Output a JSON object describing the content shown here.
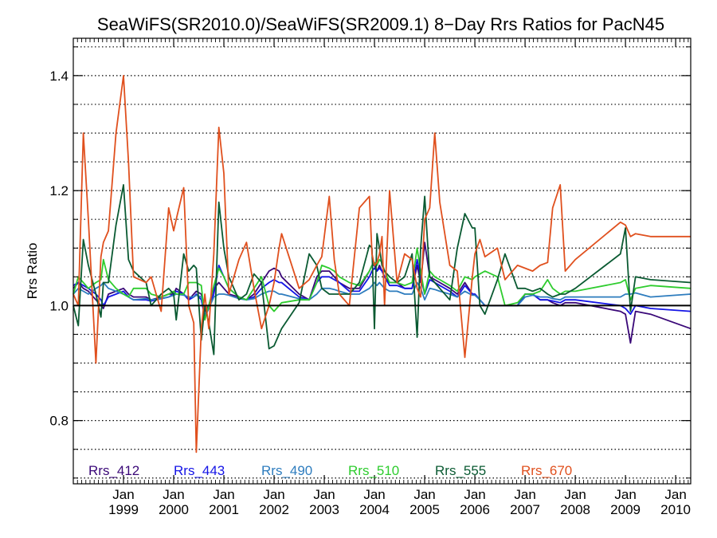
{
  "chart_data": {
    "type": "line",
    "title": "SeaWiFS(SR2010.0)/SeaWiFS(SR2009.1) 8−Day Rrs Ratios for PacN45",
    "ylabel": "Rrs Ratio",
    "xlabel": "",
    "xlim": [
      1998.0,
      2010.3
    ],
    "ylim": [
      0.69,
      1.465
    ],
    "y_major_ticks": [
      0.8,
      1.0,
      1.2,
      1.4
    ],
    "y_tick_labels": [
      "0.8",
      "1.0",
      "1.2",
      "1.4"
    ],
    "x_ticks": [
      {
        "month": "Jan",
        "year": "1999",
        "x": 1999.0
      },
      {
        "month": "Jan",
        "year": "2000",
        "x": 2000.0
      },
      {
        "month": "Jan",
        "year": "2001",
        "x": 2001.0
      },
      {
        "month": "Jan",
        "year": "2002",
        "x": 2002.0
      },
      {
        "month": "Jan",
        "year": "2003",
        "x": 2003.0
      },
      {
        "month": "Jan",
        "year": "2004",
        "x": 2004.0
      },
      {
        "month": "Jan",
        "year": "2005",
        "x": 2005.0
      },
      {
        "month": "Jan",
        "year": "2006",
        "x": 2006.0
      },
      {
        "month": "Jan",
        "year": "2007",
        "x": 2007.0
      },
      {
        "month": "Jan",
        "year": "2008",
        "x": 2008.0
      },
      {
        "month": "Jan",
        "year": "2009",
        "x": 2009.0
      },
      {
        "month": "Jan",
        "year": "2010",
        "x": 2010.0
      }
    ],
    "grid": "horizontal dotted",
    "reference_line": 1.0,
    "legend_position": "bottom",
    "x": [
      1998.0,
      1998.1,
      1998.2,
      1998.3,
      1998.45,
      1998.55,
      1998.6,
      1998.7,
      1998.85,
      1999.0,
      1999.1,
      1999.2,
      1999.45,
      1999.55,
      1999.75,
      1999.9,
      2000.0,
      2000.05,
      2000.2,
      2000.3,
      2000.4,
      2000.45,
      2000.55,
      2000.62,
      2000.7,
      2000.8,
      2000.9,
      2001.0,
      2001.1,
      2001.3,
      2001.45,
      2001.6,
      2001.75,
      2001.9,
      2002.0,
      2002.1,
      2002.15,
      2002.5,
      2002.7,
      2002.85,
      2002.95,
      2003.1,
      2003.2,
      2003.3,
      2003.5,
      2003.7,
      2003.9,
      2003.95,
      2004.0,
      2004.05,
      2004.1,
      2004.15,
      2004.2,
      2004.3,
      2004.45,
      2004.6,
      2004.75,
      2004.85,
      2004.92,
      2005.0,
      2005.1,
      2005.2,
      2005.3,
      2005.5,
      2005.65,
      2005.8,
      2005.95,
      2006.0,
      2006.1,
      2006.2,
      2006.45,
      2006.6,
      2006.85,
      2007.0,
      2007.15,
      2007.3,
      2007.45,
      2007.55,
      2007.7,
      2007.8,
      2008.0,
      2008.9,
      2009.0,
      2009.1,
      2009.2,
      2009.5,
      2010.3
    ],
    "series": [
      {
        "name": "Rrs_412",
        "color": "#3a0878",
        "values": [
          1.03,
          1.04,
          1.03,
          1.025,
          1.01,
          1.0,
          0.995,
          1.02,
          1.025,
          1.03,
          1.02,
          1.015,
          1.015,
          1.01,
          1.015,
          1.02,
          1.02,
          1.03,
          1.02,
          1.01,
          1.02,
          1.025,
          1.02,
          0.99,
          1.0,
          1.03,
          1.04,
          1.03,
          1.02,
          1.015,
          1.01,
          1.02,
          1.04,
          1.06,
          1.065,
          1.06,
          1.05,
          1.02,
          1.01,
          1.05,
          1.06,
          1.06,
          1.05,
          1.04,
          1.03,
          1.03,
          1.06,
          1.07,
          1.07,
          1.06,
          1.07,
          1.06,
          1.05,
          1.04,
          1.04,
          1.03,
          1.03,
          1.07,
          1.04,
          1.11,
          1.05,
          1.045,
          1.04,
          1.03,
          1.02,
          1.04,
          1.02,
          1.02,
          1.01,
          1.0,
          1.0,
          1.0,
          1.0,
          1.02,
          1.02,
          1.01,
          1.01,
          1.005,
          1.0,
          1.005,
          1.005,
          0.99,
          0.985,
          0.935,
          0.99,
          0.985,
          0.96
        ]
      },
      {
        "name": "Rrs_443",
        "color": "#1414e6",
        "values": [
          1.035,
          1.04,
          1.035,
          1.03,
          1.02,
          1.01,
          1.0,
          1.015,
          1.02,
          1.025,
          1.015,
          1.01,
          1.01,
          1.008,
          1.012,
          1.015,
          1.02,
          1.025,
          1.02,
          1.01,
          1.015,
          1.02,
          1.01,
          0.98,
          0.995,
          1.02,
          1.07,
          1.05,
          1.03,
          1.015,
          1.01,
          1.015,
          1.03,
          1.04,
          1.045,
          1.04,
          1.04,
          1.015,
          1.01,
          1.04,
          1.05,
          1.05,
          1.045,
          1.04,
          1.025,
          1.025,
          1.05,
          1.06,
          1.065,
          1.06,
          1.065,
          1.06,
          1.05,
          1.035,
          1.035,
          1.03,
          1.03,
          1.08,
          1.05,
          1.02,
          1.045,
          1.04,
          1.035,
          1.025,
          1.015,
          1.035,
          1.02,
          1.02,
          1.01,
          1.0,
          1.0,
          1.0,
          1.0,
          1.02,
          1.02,
          1.01,
          1.01,
          1.008,
          1.005,
          1.01,
          1.01,
          1.0,
          0.995,
          0.985,
          1.0,
          0.995,
          0.99
        ]
      },
      {
        "name": "Rrs_490",
        "color": "#2d7cbe",
        "values": [
          1.02,
          1.03,
          1.025,
          1.02,
          1.03,
          1.035,
          1.04,
          1.03,
          1.025,
          1.02,
          1.015,
          1.01,
          1.012,
          1.01,
          1.012,
          1.015,
          1.018,
          1.02,
          1.018,
          1.015,
          1.015,
          1.018,
          1.015,
          0.985,
          0.995,
          1.015,
          1.02,
          1.02,
          1.018,
          1.012,
          1.01,
          1.012,
          1.02,
          1.025,
          1.025,
          1.02,
          1.02,
          1.012,
          1.01,
          1.02,
          1.03,
          1.03,
          1.028,
          1.025,
          1.02,
          1.02,
          1.03,
          1.035,
          1.04,
          1.035,
          1.04,
          1.035,
          1.03,
          1.025,
          1.025,
          1.02,
          1.02,
          1.04,
          1.03,
          1.01,
          1.03,
          1.028,
          1.025,
          1.02,
          1.015,
          1.025,
          1.018,
          1.018,
          1.01,
          1.0,
          1.0,
          1.0,
          1.0,
          1.015,
          1.018,
          1.015,
          1.015,
          1.012,
          1.01,
          1.015,
          1.015,
          1.015,
          1.02,
          1.02,
          1.022,
          1.015,
          1.02
        ]
      },
      {
        "name": "Rrs_510",
        "color": "#2ecc2e",
        "values": [
          1.02,
          1.05,
          1.04,
          1.03,
          1.04,
          1.045,
          1.08,
          1.045,
          1.03,
          1.02,
          1.015,
          1.03,
          1.03,
          1.02,
          1.015,
          1.02,
          1.025,
          1.02,
          1.02,
          1.04,
          1.04,
          1.04,
          1.035,
          0.975,
          1.0,
          1.035,
          1.065,
          1.05,
          1.03,
          1.015,
          1.01,
          1.03,
          1.05,
          1.0,
          0.99,
          1.0,
          1.005,
          1.01,
          1.01,
          1.04,
          1.07,
          1.065,
          1.06,
          1.05,
          1.04,
          1.035,
          1.06,
          1.07,
          1.075,
          1.07,
          1.08,
          1.075,
          1.06,
          1.04,
          1.04,
          1.035,
          1.04,
          1.1,
          1.06,
          1.02,
          1.06,
          1.05,
          1.045,
          1.035,
          1.025,
          1.05,
          1.045,
          1.05,
          1.055,
          1.06,
          1.05,
          1.0,
          1.005,
          1.02,
          1.02,
          1.025,
          1.045,
          1.03,
          1.02,
          1.025,
          1.025,
          1.04,
          1.045,
          1.01,
          1.03,
          1.035,
          1.03
        ]
      },
      {
        "name": "Rrs_555",
        "color": "#0a5a32",
        "values": [
          1.0,
          0.965,
          1.115,
          1.07,
          1.02,
          0.98,
          1.04,
          1.04,
          1.14,
          1.21,
          1.08,
          1.06,
          1.04,
          1.0,
          1.02,
          1.03,
          1.02,
          0.975,
          1.09,
          1.06,
          1.07,
          1.065,
          0.94,
          1.0,
          0.97,
          0.915,
          1.18,
          1.1,
          1.05,
          1.01,
          1.02,
          1.055,
          1.04,
          0.925,
          0.93,
          0.95,
          0.96,
          1.005,
          1.09,
          1.07,
          1.03,
          1.02,
          1.02,
          1.02,
          1.02,
          1.04,
          1.105,
          1.1,
          0.96,
          1.125,
          1.1,
          1.07,
          1.06,
          1.05,
          1.04,
          1.05,
          1.09,
          0.945,
          1.1,
          1.19,
          1.05,
          1.04,
          1.03,
          1.01,
          1.1,
          1.16,
          1.135,
          1.135,
          1.0,
          0.985,
          1.045,
          1.09,
          1.03,
          1.03,
          1.025,
          1.03,
          1.02,
          1.015,
          1.02,
          1.02,
          1.03,
          1.09,
          1.135,
          0.99,
          1.05,
          1.045,
          1.04
        ]
      },
      {
        "name": "Rrs_670",
        "color": "#e0501e",
        "values": [
          1.02,
          1.0,
          1.3,
          1.15,
          0.9,
          1.085,
          1.11,
          1.13,
          1.3,
          1.4,
          1.25,
          1.05,
          1.04,
          1.05,
          0.99,
          1.17,
          1.13,
          1.15,
          1.205,
          1.0,
          0.97,
          0.745,
          0.96,
          1.02,
          0.96,
          1.09,
          1.31,
          1.23,
          1.02,
          1.08,
          1.11,
          1.03,
          0.96,
          1.0,
          1.04,
          1.1,
          1.125,
          1.03,
          1.045,
          1.07,
          1.085,
          1.19,
          1.08,
          1.02,
          1.0,
          1.17,
          1.19,
          1.09,
          1.07,
          1.075,
          1.09,
          1.12,
          1.0,
          1.2,
          1.04,
          1.09,
          1.08,
          1.03,
          1.015,
          1.15,
          1.17,
          1.3,
          1.18,
          1.07,
          1.06,
          0.91,
          1.05,
          1.09,
          1.115,
          1.085,
          1.1,
          1.045,
          1.07,
          1.065,
          1.06,
          1.07,
          1.075,
          1.17,
          1.21,
          1.06,
          1.08,
          1.145,
          1.14,
          1.12,
          1.125,
          1.12,
          1.12
        ]
      }
    ]
  }
}
